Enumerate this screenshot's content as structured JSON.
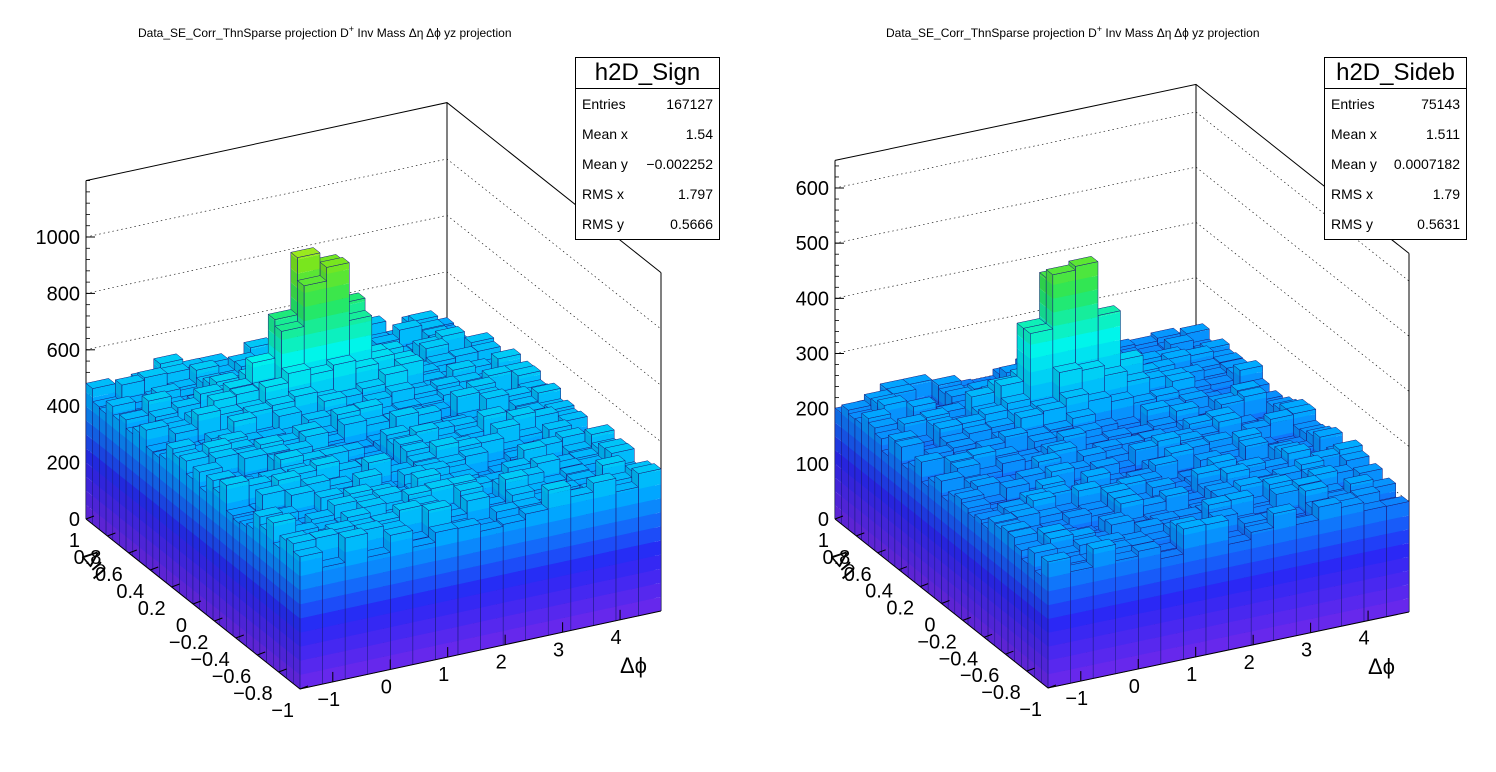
{
  "canvas": {
    "panels": [
      {
        "title_pre": "Data_SE_Corr_ThnSparse projection  D",
        "title_sup": "+",
        "title_post": " Inv Mass Δη Δϕ yz projection",
        "stats": {
          "name": "h2D_Sign",
          "rows": [
            {
              "label": "Entries",
              "value": "167127"
            },
            {
              "label": "Mean x",
              "value": "1.54"
            },
            {
              "label": "Mean y",
              "value": "−0.002252"
            },
            {
              "label": "RMS x",
              "value": "1.797"
            },
            {
              "label": "RMS y",
              "value": "0.5666"
            }
          ]
        }
      },
      {
        "title_pre": "Data_SE_Corr_ThnSparse projection  D",
        "title_sup": "+",
        "title_post": " Inv Mass Δη Δϕ yz projection",
        "stats": {
          "name": "h2D_Sideb",
          "rows": [
            {
              "label": "Entries",
              "value": "75143"
            },
            {
              "label": "Mean x",
              "value": "1.511"
            },
            {
              "label": "Mean y",
              "value": "0.0007182"
            },
            {
              "label": "RMS x",
              "value": "1.79"
            },
            {
              "label": "RMS y",
              "value": "0.5631"
            }
          ]
        }
      }
    ]
  },
  "chart_data": [
    {
      "type": "lego",
      "title": "Data_SE_Corr_ThnSparse projection  D+ Inv Mass Δη Δϕ yz projection",
      "histogram": "h2D_Sign",
      "xlabel": "Δϕ",
      "ylabel": "Δη",
      "zlabel": "",
      "xlim": [
        -1.5708,
        4.7124
      ],
      "ylim": [
        -1,
        1
      ],
      "zlim": [
        0,
        1200
      ],
      "x_ticks": [
        "−1",
        "0",
        "1",
        "2",
        "3",
        "4"
      ],
      "y_ticks": [
        "−1",
        "−0.8",
        "−0.6",
        "−0.4",
        "−0.2",
        "0",
        "0.2",
        "0.4",
        "0.6",
        "0.8",
        "1"
      ],
      "z_ticks": [
        "0",
        "200",
        "400",
        "600",
        "800",
        "1000"
      ],
      "nbins_x": 32,
      "nbins_y": 16,
      "baseline": 470,
      "peak_value": 910,
      "peak_position": {
        "x": 0,
        "y": 0
      },
      "color_palette": "rainbow (violet → blue → cyan → green → yellow → red)"
    },
    {
      "type": "lego",
      "title": "Data_SE_Corr_ThnSparse projection  D+ Inv Mass Δη Δϕ yz projection",
      "histogram": "h2D_Sideb",
      "xlabel": "Δϕ",
      "ylabel": "Δη",
      "zlabel": "",
      "xlim": [
        -1.5708,
        4.7124
      ],
      "ylim": [
        -1,
        1
      ],
      "zlim": [
        0,
        650
      ],
      "x_ticks": [
        "−1",
        "0",
        "1",
        "2",
        "3",
        "4"
      ],
      "y_ticks": [
        "−1",
        "−0.8",
        "−0.6",
        "−0.4",
        "−0.2",
        "0",
        "0.2",
        "0.4",
        "0.6",
        "0.8",
        "1"
      ],
      "z_ticks": [
        "0",
        "100",
        "200",
        "300",
        "400",
        "500",
        "600"
      ],
      "nbins_x": 32,
      "nbins_y": 16,
      "baseline": 215,
      "peak_value": 500,
      "peak_position": {
        "x": 0,
        "y": 0
      },
      "color_palette": "rainbow (violet → blue → cyan → green → yellow → red)"
    }
  ]
}
